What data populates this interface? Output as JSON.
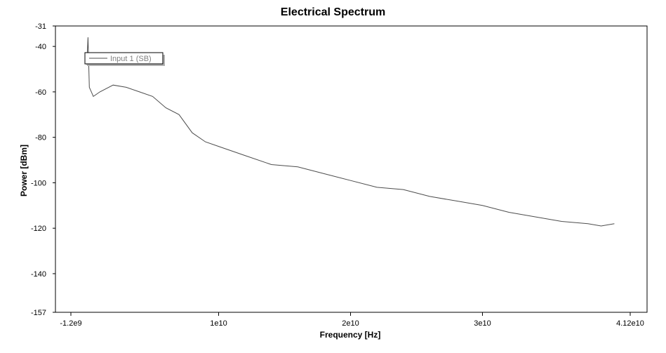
{
  "chart_data": {
    "type": "line",
    "title": "Electrical Spectrum",
    "xlabel": "Frequency [Hz]",
    "ylabel": "Power [dBm]",
    "xlim": [
      -1200000000.0,
      41200000000.0
    ],
    "ylim": [
      -157,
      -31
    ],
    "x_ticks": [
      {
        "value": -1200000000.0,
        "label": "-1.2e9"
      },
      {
        "value": 10000000000.0,
        "label": "1e10"
      },
      {
        "value": 20000000000.0,
        "label": "2e10"
      },
      {
        "value": 30000000000.0,
        "label": "3e10"
      },
      {
        "value": 41200000000.0,
        "label": "4.12e10"
      }
    ],
    "y_ticks": [
      {
        "value": -31,
        "label": "-31"
      },
      {
        "value": -40,
        "label": "-40"
      },
      {
        "value": -60,
        "label": "-60"
      },
      {
        "value": -80,
        "label": "-80"
      },
      {
        "value": -100,
        "label": "-100"
      },
      {
        "value": -120,
        "label": "-120"
      },
      {
        "value": -140,
        "label": "-140"
      },
      {
        "value": -157,
        "label": "-157"
      }
    ],
    "grid": false,
    "legend": {
      "placement": "top-left"
    },
    "series": [
      {
        "name": "Input 1  (SB)",
        "color": "#4d4d4d",
        "x": [
          0,
          100000000.0,
          200000000.0,
          500000000.0,
          1000000000.0,
          2000000000.0,
          3000000000.0,
          4000000000.0,
          5000000000.0,
          6000000000.0,
          7000000000.0,
          8000000000.0,
          9000000000.0,
          10000000000.0,
          12000000000.0,
          14000000000.0,
          16000000000.0,
          18000000000.0,
          20000000000.0,
          22000000000.0,
          24000000000.0,
          26000000000.0,
          28000000000.0,
          30000000000.0,
          32000000000.0,
          34000000000.0,
          36000000000.0,
          38000000000.0,
          39000000000.0,
          40000000000.0
        ],
        "y": [
          -48,
          -36,
          -58,
          -62,
          -60,
          -57,
          -58,
          -60,
          -62,
          -67,
          -70,
          -78,
          -82,
          -84,
          -88,
          -92,
          -93,
          -96,
          -99,
          -102,
          -103,
          -106,
          -108,
          -110,
          -113,
          -115,
          -117,
          -118,
          -119,
          -118
        ]
      }
    ]
  }
}
